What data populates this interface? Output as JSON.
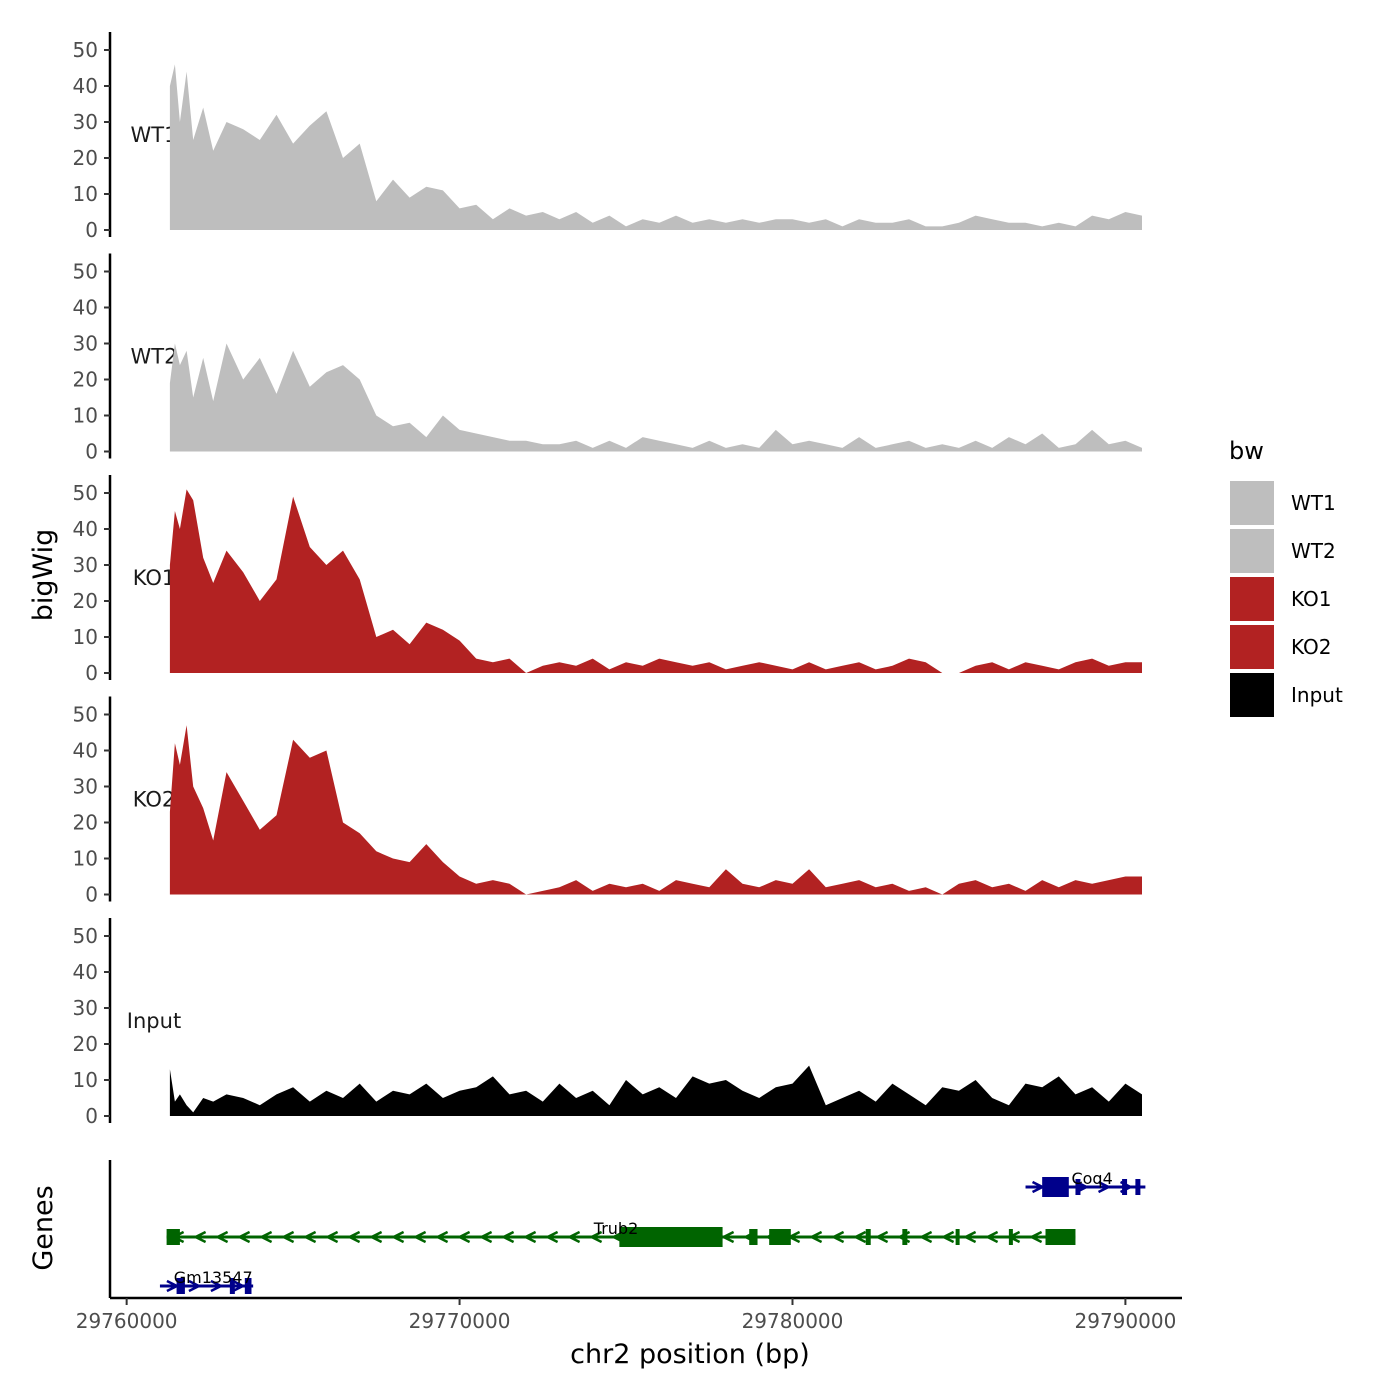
{
  "chart_data": {
    "type": "area",
    "x_axis": {
      "label": "chr2 position (bp)",
      "range": [
        29759500,
        29791700
      ],
      "ticks": [
        29760000,
        29770000,
        29780000,
        29790000
      ],
      "tick_labels": [
        "29760000",
        "29770000",
        "29780000",
        "29790000"
      ]
    },
    "y_axis": {
      "label": "bigWig",
      "range": [
        0,
        55
      ],
      "ticks": [
        0,
        10,
        20,
        30,
        40,
        50
      ],
      "tick_labels": [
        "0",
        "10",
        "20",
        "30",
        "40",
        "50"
      ]
    },
    "gene_track_label": "Genes",
    "legend": {
      "title": "bw",
      "entries": [
        {
          "label": "WT1",
          "color": "#bebebe"
        },
        {
          "label": "WT2",
          "color": "#bebebe"
        },
        {
          "label": "KO1",
          "color": "#b22222"
        },
        {
          "label": "KO2",
          "color": "#b22222"
        },
        {
          "label": "Input",
          "color": "#000000"
        }
      ]
    },
    "series": [
      {
        "name": "WT1",
        "color": "#bebebe",
        "x": [
          29761300,
          29761450,
          29761600,
          29761800,
          29762000,
          29762300,
          29762600,
          29763000,
          29763500,
          29764000,
          29764500,
          29765000,
          29765500,
          29766000,
          29766500,
          29767000,
          29767500,
          29768000,
          29768500,
          29769000,
          29769500,
          29770000,
          29770500,
          29771000,
          29771500,
          29772000,
          29772500,
          29773000,
          29773500,
          29774000,
          29774500,
          29775000,
          29775500,
          29776000,
          29776500,
          29777000,
          29777500,
          29778000,
          29778500,
          29779000,
          29779500,
          29780000,
          29780500,
          29781000,
          29781500,
          29782000,
          29782500,
          29783000,
          29783500,
          29784000,
          29784500,
          29785000,
          29785500,
          29786000,
          29786500,
          29787000,
          29787500,
          29788000,
          29788500,
          29789000,
          29789500,
          29790000,
          29790500
        ],
        "values": [
          40,
          46,
          30,
          44,
          25,
          34,
          22,
          30,
          28,
          25,
          32,
          24,
          29,
          33,
          20,
          24,
          8,
          14,
          9,
          12,
          11,
          6,
          7,
          3,
          6,
          4,
          5,
          3,
          5,
          2,
          4,
          1,
          3,
          2,
          4,
          2,
          3,
          2,
          3,
          2,
          3,
          3,
          2,
          3,
          1,
          3,
          2,
          2,
          3,
          1,
          1,
          2,
          4,
          3,
          2,
          2,
          1,
          2,
          1,
          4,
          3,
          5,
          4
        ]
      },
      {
        "name": "WT2",
        "color": "#bebebe",
        "x": [
          29761300,
          29761450,
          29761600,
          29761800,
          29762000,
          29762300,
          29762600,
          29763000,
          29763500,
          29764000,
          29764500,
          29765000,
          29765500,
          29766000,
          29766500,
          29767000,
          29767500,
          29768000,
          29768500,
          29769000,
          29769500,
          29770000,
          29770500,
          29771000,
          29771500,
          29772000,
          29772500,
          29773000,
          29773500,
          29774000,
          29774500,
          29775000,
          29775500,
          29776000,
          29776500,
          29777000,
          29777500,
          29778000,
          29778500,
          29779000,
          29779500,
          29780000,
          29780500,
          29781000,
          29781500,
          29782000,
          29782500,
          29783000,
          29783500,
          29784000,
          29784500,
          29785000,
          29785500,
          29786000,
          29786500,
          29787000,
          29787500,
          29788000,
          29788500,
          29789000,
          29789500,
          29790000,
          29790500
        ],
        "values": [
          19,
          30,
          24,
          28,
          15,
          26,
          14,
          30,
          20,
          26,
          16,
          28,
          18,
          22,
          24,
          20,
          10,
          7,
          8,
          4,
          10,
          6,
          5,
          4,
          3,
          3,
          2,
          2,
          3,
          1,
          3,
          1,
          4,
          3,
          2,
          1,
          3,
          1,
          2,
          1,
          6,
          2,
          3,
          2,
          1,
          4,
          1,
          2,
          3,
          1,
          2,
          1,
          3,
          1,
          4,
          2,
          5,
          1,
          2,
          6,
          2,
          3,
          1
        ]
      },
      {
        "name": "KO1",
        "color": "#b22222",
        "x": [
          29761300,
          29761450,
          29761600,
          29761800,
          29762000,
          29762300,
          29762600,
          29763000,
          29763500,
          29764000,
          29764500,
          29765000,
          29765500,
          29766000,
          29766500,
          29767000,
          29767500,
          29768000,
          29768500,
          29769000,
          29769500,
          29770000,
          29770500,
          29771000,
          29771500,
          29772000,
          29772500,
          29773000,
          29773500,
          29774000,
          29774500,
          29775000,
          29775500,
          29776000,
          29776500,
          29777000,
          29777500,
          29778000,
          29778500,
          29779000,
          29779500,
          29780000,
          29780500,
          29781000,
          29781500,
          29782000,
          29782500,
          29783000,
          29783500,
          29784000,
          29784500,
          29785000,
          29785500,
          29786000,
          29786500,
          29787000,
          29787500,
          29788000,
          29788500,
          29789000,
          29789500,
          29790000,
          29790500
        ],
        "values": [
          30,
          45,
          40,
          51,
          48,
          32,
          25,
          34,
          28,
          20,
          26,
          49,
          35,
          30,
          34,
          26,
          10,
          12,
          8,
          14,
          12,
          9,
          4,
          3,
          4,
          0,
          2,
          3,
          2,
          4,
          1,
          3,
          2,
          4,
          3,
          2,
          3,
          1,
          2,
          3,
          2,
          1,
          3,
          1,
          2,
          3,
          1,
          2,
          4,
          3,
          0,
          0,
          2,
          3,
          1,
          3,
          2,
          1,
          3,
          4,
          2,
          3,
          3
        ]
      },
      {
        "name": "KO2",
        "color": "#b22222",
        "x": [
          29761300,
          29761450,
          29761600,
          29761800,
          29762000,
          29762300,
          29762600,
          29763000,
          29763500,
          29764000,
          29764500,
          29765000,
          29765500,
          29766000,
          29766500,
          29767000,
          29767500,
          29768000,
          29768500,
          29769000,
          29769500,
          29770000,
          29770500,
          29771000,
          29771500,
          29772000,
          29772500,
          29773000,
          29773500,
          29774000,
          29774500,
          29775000,
          29775500,
          29776000,
          29776500,
          29777000,
          29777500,
          29778000,
          29778500,
          29779000,
          29779500,
          29780000,
          29780500,
          29781000,
          29781500,
          29782000,
          29782500,
          29783000,
          29783500,
          29784000,
          29784500,
          29785000,
          29785500,
          29786000,
          29786500,
          29787000,
          29787500,
          29788000,
          29788500,
          29789000,
          29789500,
          29790000,
          29790500
        ],
        "values": [
          23,
          42,
          36,
          47,
          30,
          24,
          15,
          34,
          26,
          18,
          22,
          43,
          38,
          40,
          20,
          17,
          12,
          10,
          9,
          14,
          9,
          5,
          3,
          4,
          3,
          0,
          1,
          2,
          4,
          1,
          3,
          2,
          3,
          1,
          4,
          3,
          2,
          7,
          3,
          2,
          4,
          3,
          7,
          2,
          3,
          4,
          2,
          3,
          1,
          2,
          0,
          3,
          4,
          2,
          3,
          1,
          4,
          2,
          4,
          3,
          4,
          5,
          5
        ]
      },
      {
        "name": "Input",
        "color": "#000000",
        "x": [
          29761300,
          29761450,
          29761600,
          29761800,
          29762000,
          29762300,
          29762600,
          29763000,
          29763500,
          29764000,
          29764500,
          29765000,
          29765500,
          29766000,
          29766500,
          29767000,
          29767500,
          29768000,
          29768500,
          29769000,
          29769500,
          29770000,
          29770500,
          29771000,
          29771500,
          29772000,
          29772500,
          29773000,
          29773500,
          29774000,
          29774500,
          29775000,
          29775500,
          29776000,
          29776500,
          29777000,
          29777500,
          29778000,
          29778500,
          29779000,
          29779500,
          29780000,
          29780500,
          29781000,
          29781500,
          29782000,
          29782500,
          29783000,
          29783500,
          29784000,
          29784500,
          29785000,
          29785500,
          29786000,
          29786500,
          29787000,
          29787500,
          29788000,
          29788500,
          29789000,
          29789500,
          29790000,
          29790500
        ],
        "values": [
          13,
          4,
          6,
          3,
          1,
          5,
          4,
          6,
          5,
          3,
          6,
          8,
          4,
          7,
          5,
          9,
          4,
          7,
          6,
          9,
          5,
          7,
          8,
          11,
          6,
          7,
          4,
          9,
          5,
          7,
          3,
          10,
          6,
          8,
          5,
          11,
          9,
          10,
          7,
          5,
          8,
          9,
          14,
          3,
          5,
          7,
          4,
          9,
          6,
          3,
          8,
          7,
          10,
          5,
          3,
          9,
          8,
          11,
          6,
          8,
          4,
          9,
          6
        ]
      }
    ],
    "genes": [
      {
        "name": "Trub2",
        "strand": "-",
        "start": 29761200,
        "end": 29788500,
        "color": "#006400",
        "row": 1,
        "exons": [
          [
            29761200,
            29761600
          ],
          [
            29774800,
            29777900
          ],
          [
            29778700,
            29778950
          ],
          [
            29779300,
            29779950
          ],
          [
            29782200,
            29782350
          ],
          [
            29783300,
            29783450
          ],
          [
            29784900,
            29785000
          ],
          [
            29786500,
            29786600
          ],
          [
            29787600,
            29788500
          ]
        ],
        "thick": [
          [
            29774800,
            29777900
          ]
        ]
      },
      {
        "name": "Coq4",
        "strand": "+",
        "start": 29787000,
        "end": 29790600,
        "color": "#00008b",
        "row": 0,
        "exons": [
          [
            29787500,
            29788300
          ],
          [
            29788500,
            29788650
          ],
          [
            29789900,
            29790050
          ],
          [
            29790300,
            29790450
          ]
        ],
        "thick": [
          [
            29787500,
            29788300
          ]
        ]
      },
      {
        "name": "Gm13547",
        "strand": "+",
        "start": 29761000,
        "end": 29763800,
        "color": "#00008b",
        "row": 2,
        "exons": [
          [
            29761500,
            29761750
          ],
          [
            29763100,
            29763250
          ],
          [
            29763550,
            29763750
          ]
        ],
        "thick": []
      }
    ]
  }
}
